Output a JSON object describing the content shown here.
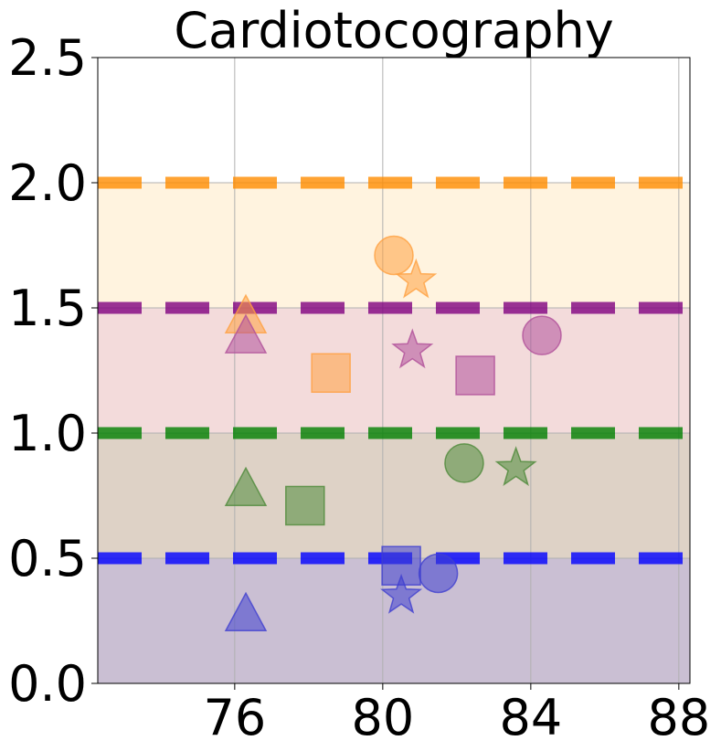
{
  "chart_data": {
    "type": "scatter",
    "title": "Cardiotocography",
    "xlabel": "",
    "ylabel": "",
    "xlim": [
      72.3,
      88.3
    ],
    "ylim": [
      0,
      2.5
    ],
    "xticks": [
      76,
      80,
      84,
      88
    ],
    "xtick_labels": [
      "76",
      "80",
      "84",
      "88"
    ],
    "yticks": [
      0.0,
      0.5,
      1.0,
      1.5,
      2.0,
      2.5
    ],
    "ytick_labels": [
      "0.0",
      "0.5",
      "1.0",
      "1.5",
      "2.0",
      "2.5"
    ],
    "grid": true,
    "bands": [
      {
        "y0": 0.0,
        "y1": 0.5,
        "color": "#2b004f",
        "opacity": 0.25
      },
      {
        "y0": 0.5,
        "y1": 1.0,
        "color": "#7a4a1a",
        "opacity": 0.25
      },
      {
        "y0": 1.0,
        "y1": 1.5,
        "color": "#d07070",
        "opacity": 0.25
      },
      {
        "y0": 1.5,
        "y1": 2.0,
        "color": "#ffe0b0",
        "opacity": 0.4
      }
    ],
    "thresholds": [
      {
        "y": 0.5,
        "color": "#0000ff"
      },
      {
        "y": 1.0,
        "color": "#008000"
      },
      {
        "y": 1.5,
        "color": "#800080"
      },
      {
        "y": 2.0,
        "color": "#ff8c00"
      }
    ],
    "series": [
      {
        "color": "#ffa040",
        "points": [
          {
            "x": 80.3,
            "y": 1.71,
            "marker": "circle"
          },
          {
            "x": 80.9,
            "y": 1.61,
            "marker": "star"
          },
          {
            "x": 76.3,
            "y": 1.47,
            "marker": "triangle"
          },
          {
            "x": 78.6,
            "y": 1.24,
            "marker": "square"
          }
        ]
      },
      {
        "color": "#b0509a",
        "points": [
          {
            "x": 84.3,
            "y": 1.39,
            "marker": "circle"
          },
          {
            "x": 80.8,
            "y": 1.33,
            "marker": "star"
          },
          {
            "x": 76.3,
            "y": 1.39,
            "marker": "triangle"
          },
          {
            "x": 82.5,
            "y": 1.23,
            "marker": "square"
          }
        ]
      },
      {
        "color": "#4e8a3a",
        "points": [
          {
            "x": 82.2,
            "y": 0.88,
            "marker": "circle"
          },
          {
            "x": 83.6,
            "y": 0.86,
            "marker": "star"
          },
          {
            "x": 76.3,
            "y": 0.78,
            "marker": "triangle"
          },
          {
            "x": 77.9,
            "y": 0.71,
            "marker": "square"
          }
        ]
      },
      {
        "color": "#4040d0",
        "points": [
          {
            "x": 81.5,
            "y": 0.44,
            "marker": "circle"
          },
          {
            "x": 80.5,
            "y": 0.35,
            "marker": "star"
          },
          {
            "x": 76.3,
            "y": 0.28,
            "marker": "triangle"
          },
          {
            "x": 80.5,
            "y": 0.47,
            "marker": "square"
          }
        ]
      }
    ]
  }
}
